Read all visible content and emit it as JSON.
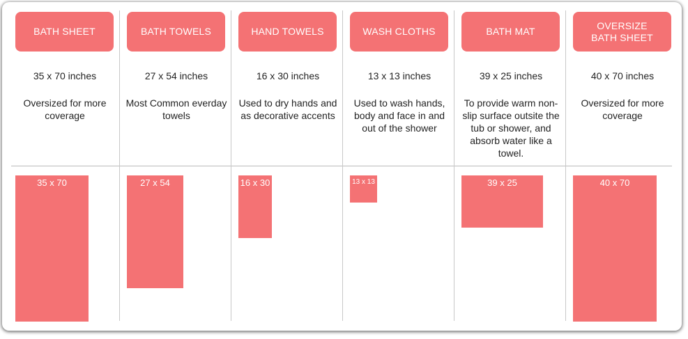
{
  "accent_color": "#f47274",
  "columns": [
    {
      "label": "BATH SHEET",
      "dimensions": "35 x 70 inches",
      "description": "Oversized for more coverage",
      "size_label": "35 x 70",
      "width_in": 35,
      "height_in": 70
    },
    {
      "label": "BATH TOWELS",
      "dimensions": "27 x 54 inches",
      "description": "Most Common everday towels",
      "size_label": "27 x 54",
      "width_in": 27,
      "height_in": 54
    },
    {
      "label": "HAND TOWELS",
      "dimensions": "16 x 30 inches",
      "description": "Used to dry hands and as decorative accents",
      "size_label": "16 x 30",
      "width_in": 16,
      "height_in": 30
    },
    {
      "label": "WASH CLOTHS",
      "dimensions": "13 x 13 inches",
      "description": "Used to wash hands, body and face in and out of the shower",
      "size_label": "13 x 13",
      "width_in": 13,
      "height_in": 13
    },
    {
      "label": "BATH MAT",
      "dimensions": "39 x 25 inches",
      "description": "To provide warm non-slip surface outsite the tub or shower, and absorb water like a towel.",
      "size_label": "39 x 25",
      "width_in": 39,
      "height_in": 25
    },
    {
      "label": "OVERSIZE\nBATH SHEET",
      "dimensions": "40 x 70 inches",
      "description": "Oversized for more coverage",
      "size_label": "40 x 70",
      "width_in": 40,
      "height_in": 70
    }
  ]
}
